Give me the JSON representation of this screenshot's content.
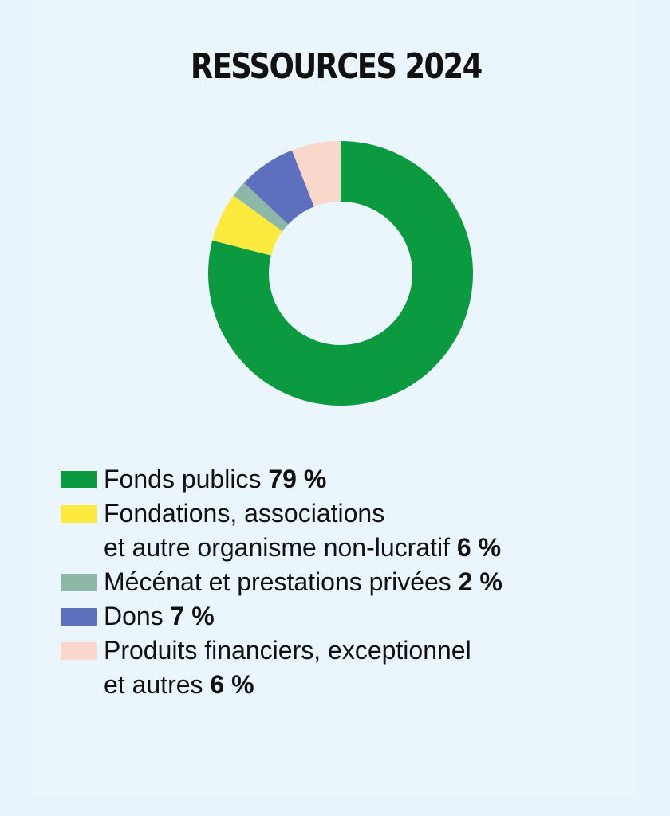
{
  "chart_data": {
    "type": "pie",
    "title": "RESSOURCES 2024",
    "categories": [
      "Fonds publics",
      "Fondations, associations et autre organisme non-lucratif",
      "Mécénat et prestations privées",
      "Dons",
      "Produits financiers, exceptionnel et autres"
    ],
    "values": [
      79,
      6,
      2,
      7,
      6
    ],
    "unit": "%",
    "colors": [
      "#0b9a3f",
      "#fdea3f",
      "#8db8a8",
      "#5e6fbd",
      "#f9d8cb"
    ],
    "legend_position": "bottom"
  },
  "legend": [
    {
      "line1": "Fonds publics",
      "line2": "",
      "pct": "79 %"
    },
    {
      "line1": "Fondations, associations",
      "line2": "et autre organisme non-lucratif",
      "pct": "6 %"
    },
    {
      "line1": "Mécénat et prestations privées",
      "line2": "",
      "pct": "2 %"
    },
    {
      "line1": "Dons",
      "line2": "",
      "pct": "7 %"
    },
    {
      "line1": "Produits financiers, exceptionnel",
      "line2": "et autres",
      "pct": "6 %"
    }
  ]
}
